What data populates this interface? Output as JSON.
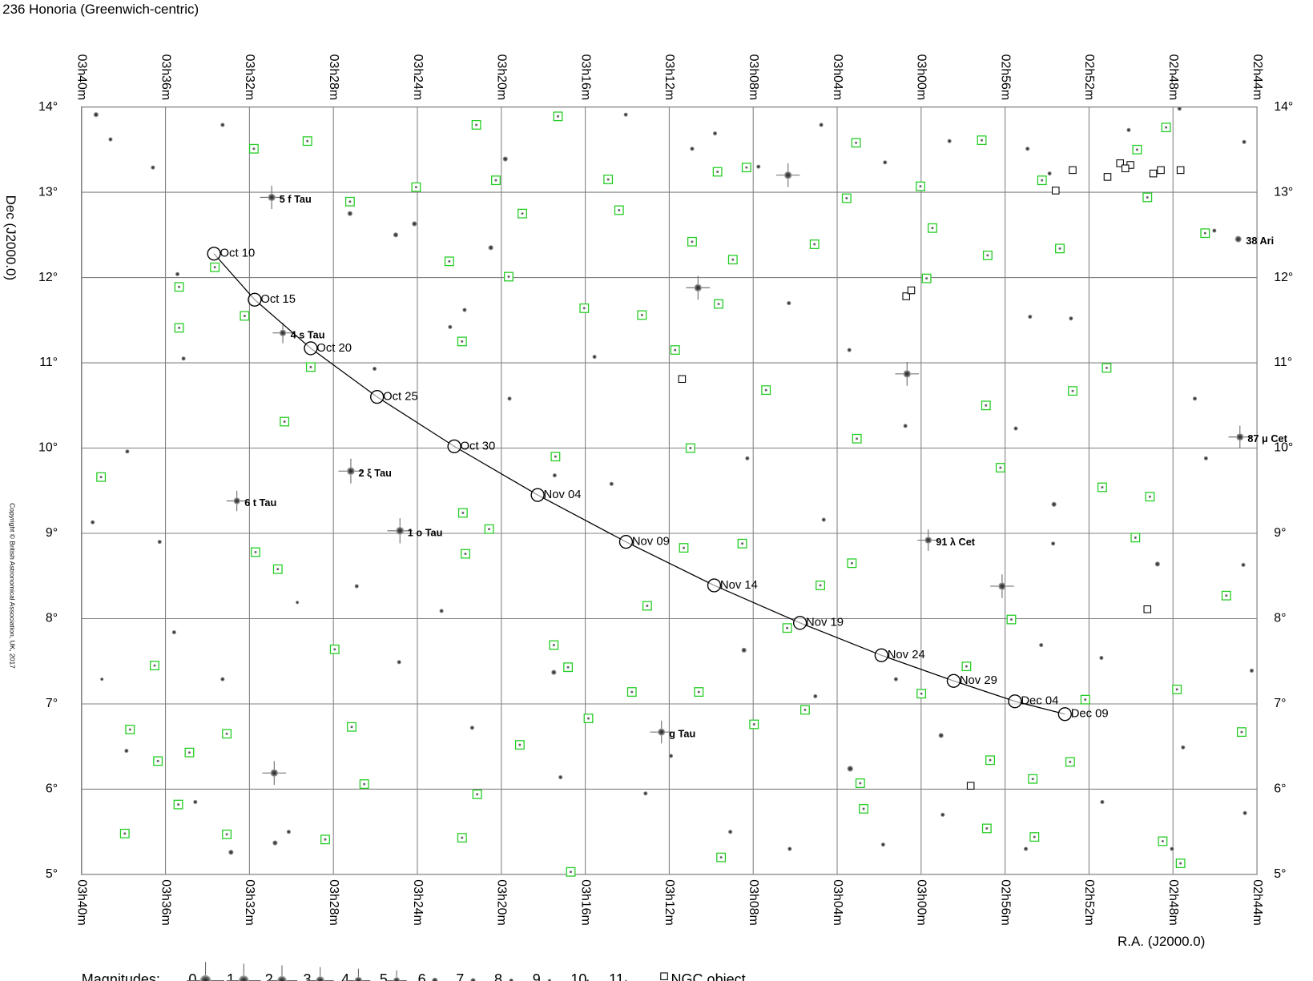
{
  "chart_data": {
    "type": "scatter",
    "title": "236 Honoria (Greenwich-centric)",
    "x_label": "R.A. (J2000.0)",
    "y_label": "Dec (J2000.0)",
    "copyright": "Copyright © British Astronomical Association, UK, 2017",
    "xlim": [
      220,
      164
    ],
    "ylim": [
      5,
      14
    ],
    "grid": true,
    "xticks": [
      {
        "value": 220,
        "label": "03h40m"
      },
      {
        "value": 216,
        "label": "03h36m"
      },
      {
        "value": 212,
        "label": "03h32m"
      },
      {
        "value": 208,
        "label": "03h28m"
      },
      {
        "value": 204,
        "label": "03h24m"
      },
      {
        "value": 200,
        "label": "03h20m"
      },
      {
        "value": 196,
        "label": "03h16m"
      },
      {
        "value": 192,
        "label": "03h12m"
      },
      {
        "value": 188,
        "label": "03h08m"
      },
      {
        "value": 184,
        "label": "03h04m"
      },
      {
        "value": 180,
        "label": "03h00m"
      },
      {
        "value": 176,
        "label": "02h56m"
      },
      {
        "value": 172,
        "label": "02h52m"
      },
      {
        "value": 168,
        "label": "02h48m"
      },
      {
        "value": 164,
        "label": "02h44m"
      }
    ],
    "yticks": [
      {
        "value": 14,
        "label": "14°"
      },
      {
        "value": 13,
        "label": "13°"
      },
      {
        "value": 12,
        "label": "12°"
      },
      {
        "value": 11,
        "label": "11°"
      },
      {
        "value": 10,
        "label": "10°"
      },
      {
        "value": 9,
        "label": "9°"
      },
      {
        "value": 8,
        "label": "8°"
      },
      {
        "value": 7,
        "label": "7°"
      },
      {
        "value": 6,
        "label": "6°"
      },
      {
        "value": 5,
        "label": "5°"
      }
    ],
    "track": {
      "color": "#000000",
      "labels": [
        "Oct 10",
        "Oct 15",
        "Oct 20",
        "Oct 25",
        "Oct 30",
        "Nov 04",
        "Nov 09",
        "Nov 14",
        "Nov 19",
        "Nov 24",
        "Nov 29",
        "Dec 04",
        "Dec 09"
      ],
      "x": [
        213.69,
        211.75,
        209.08,
        205.92,
        202.24,
        198.27,
        194.06,
        189.86,
        185.77,
        181.89,
        178.45,
        175.53,
        173.15
      ],
      "y": [
        12.28,
        11.74,
        11.17,
        10.6,
        10.02,
        9.45,
        8.9,
        8.39,
        7.95,
        7.57,
        7.27,
        7.03,
        6.88
      ]
    },
    "named_stars": {
      "labels": [
        "5 f Tau",
        "4 s Tau",
        "2 ξ Tau",
        "6 t Tau",
        "1 o Tau",
        "g Tau",
        "91 λ Cet",
        "87 μ Cet",
        "38 Ari"
      ],
      "x": [
        210.94,
        210.41,
        207.17,
        212.6,
        204.83,
        192.37,
        179.66,
        164.81,
        164.89
      ],
      "y": [
        12.94,
        11.35,
        9.73,
        9.38,
        9.03,
        6.67,
        8.92,
        10.13,
        12.45
      ],
      "mag": [
        4.1,
        5,
        3.7,
        5,
        3.6,
        4.3,
        4.7,
        4.3,
        5.2
      ]
    },
    "stars": {
      "x": [
        219.31,
        213.28,
        199.81,
        186.34,
        190.63,
        180.67,
        176.14,
        210.82,
        210.78,
        212.88,
        173.67,
        205.03,
        200.5,
        183.38,
        179.05,
        168.74,
        164.61,
        167.69,
        166.03,
        218.62,
        216.6,
        215.43,
        215.14,
        217.82,
        219.47,
        216.28,
        213.28,
        217.86,
        214.58,
        210.13,
        207.21,
        204.14,
        206.04,
        202.44,
        201.75,
        199.61,
        197.46,
        195.56,
        194.07,
        190.91,
        189.82,
        187.75,
        184.76,
        181.72,
        178.65,
        174.93,
        173.88,
        170.11,
        174.81,
        172.86,
        183.42,
        186.3,
        188.28,
        184.64,
        180.75,
        175.49,
        173.71,
        166.43,
        164.65,
        166.96,
        188.44,
        197.5,
        201.39,
        197.18,
        193.13,
        189.09,
        186.26,
        181.81,
        178.97,
        175.01,
        171.37,
        168.05,
        164.57,
        164.25,
        167.52,
        171.41,
        174.28,
        181.2,
        185.04,
        191.92,
        194.75,
        206.89,
        204.87,
        202.85,
        215.59,
        219.03,
        209.72
      ],
      "y": [
        13.91,
        13.79,
        13.39,
        13.2,
        11.88,
        10.87,
        8.38,
        6.19,
        5.37,
        5.26,
        9.34,
        12.5,
        12.35,
        6.24,
        6.63,
        8.64,
        13.59,
        13.98,
        12.55,
        13.62,
        13.29,
        12.04,
        11.05,
        9.96,
        9.13,
        8.9,
        7.29,
        6.45,
        5.85,
        5.5,
        12.75,
        12.63,
        10.93,
        11.42,
        11.62,
        10.58,
        9.68,
        11.07,
        13.91,
        13.51,
        13.69,
        13.3,
        13.79,
        13.35,
        13.6,
        13.51,
        13.22,
        13.73,
        11.54,
        11.52,
        11.15,
        11.7,
        9.88,
        9.16,
        10.26,
        10.23,
        8.88,
        9.88,
        8.63,
        10.58,
        7.63,
        7.37,
        6.72,
        6.14,
        5.95,
        5.5,
        5.3,
        5.35,
        5.7,
        5.3,
        5.85,
        5.3,
        5.72,
        7.39,
        6.49,
        7.54,
        7.69,
        7.29,
        7.09,
        6.39,
        9.58,
        8.38,
        7.49,
        8.09,
        7.84,
        7.29,
        8.19
      ],
      "mag": [
        7,
        8,
        7,
        4,
        4,
        4,
        4,
        4,
        7,
        7,
        7,
        7,
        7,
        6,
        7,
        7,
        8,
        8,
        8,
        8,
        8,
        8,
        8,
        8,
        8,
        8,
        8,
        8,
        8,
        8,
        7,
        7,
        8,
        8,
        8,
        8,
        8,
        8,
        8,
        8,
        8,
        8,
        8,
        8,
        8,
        8,
        8,
        8,
        8,
        8,
        8,
        8,
        8,
        8,
        8,
        8,
        8,
        8,
        8,
        8,
        7,
        7,
        8,
        8,
        8,
        8,
        8,
        8,
        8,
        8,
        8,
        8,
        8,
        8,
        8,
        8,
        8,
        8,
        8,
        8,
        8,
        8,
        8,
        8,
        8,
        9,
        9
      ]
    },
    "galaxies": {
      "color": "#22cc22",
      "x": [
        211.79,
        209.24,
        201.19,
        197.3,
        204.06,
        207.21,
        200.26,
        199.0,
        202.48,
        199.65,
        194.91,
        194.39,
        190.91,
        189.7,
        188.97,
        188.32,
        183.1,
        183.55,
        185.08,
        180.03,
        179.46,
        179.74,
        176.83,
        177.11,
        174.24,
        173.39,
        169.71,
        169.22,
        168.33,
        166.47,
        215.35,
        215.35,
        213.65,
        212.23,
        209.08,
        201.87,
        196.05,
        193.3,
        191.72,
        189.65,
        187.39,
        176.91,
        172.78,
        171.16,
        183.06,
        190.99,
        197.42,
        210.33,
        219.07,
        176.22,
        171.37,
        169.1,
        201.83,
        200.58,
        201.71,
        211.71,
        210.65,
        191.31,
        188.52,
        183.3,
        184.8,
        193.05,
        186.38,
        175.7,
        169.79,
        165.46,
        177.84,
        179.99,
        172.18,
        167.81,
        164.73,
        172.9,
        176.71,
        182.9,
        185.53,
        187.96,
        190.59,
        193.78,
        196.82,
        197.5,
        199.12,
        195.85,
        207.94,
        207.13,
        206.53,
        213.08,
        214.86,
        216.36,
        216.52,
        217.69,
        217.94,
        213.08,
        208.39,
        201.87,
        201.15,
        196.69,
        189.53,
        182.74,
        176.87,
        174.6,
        168.49,
        167.64,
        174.68,
        215.39
      ],
      "y": [
        13.51,
        13.6,
        13.79,
        13.89,
        13.06,
        12.89,
        13.14,
        12.75,
        12.19,
        12.01,
        13.15,
        12.79,
        12.42,
        13.24,
        12.21,
        13.29,
        13.58,
        12.93,
        12.39,
        13.07,
        12.58,
        11.99,
        12.26,
        13.61,
        13.14,
        12.34,
        13.5,
        12.94,
        13.76,
        12.52,
        11.89,
        11.41,
        12.12,
        11.55,
        10.95,
        11.25,
        11.64,
        11.56,
        11.15,
        11.69,
        10.68,
        10.5,
        10.67,
        10.94,
        10.11,
        10.0,
        9.9,
        10.31,
        9.66,
        9.77,
        9.54,
        9.43,
        9.24,
        9.05,
        8.76,
        8.78,
        8.58,
        8.83,
        8.88,
        8.65,
        8.39,
        8.15,
        7.89,
        7.99,
        8.95,
        8.27,
        7.44,
        7.12,
        7.05,
        7.17,
        6.67,
        6.32,
        6.34,
        6.07,
        6.93,
        6.76,
        7.14,
        7.14,
        7.43,
        7.69,
        6.52,
        6.83,
        7.64,
        6.73,
        6.06,
        6.65,
        6.43,
        6.33,
        7.45,
        6.7,
        5.48,
        5.47,
        5.41,
        5.43,
        5.94,
        5.03,
        5.2,
        5.77,
        5.54,
        5.44,
        5.39,
        5.13,
        6.12,
        5.82
      ]
    },
    "ngc_objects": {
      "name": "NGC object",
      "color": "#000000",
      "x": [
        172.78,
        173.59,
        171.12,
        170.52,
        170.03,
        170.27,
        168.94,
        168.58,
        167.64,
        180.71,
        180.47,
        191.39,
        169.22,
        177.64
      ],
      "y": [
        13.26,
        13.02,
        13.18,
        13.34,
        13.32,
        13.28,
        13.22,
        13.26,
        13.26,
        11.78,
        11.85,
        10.81,
        8.11,
        6.04
      ]
    },
    "legend": {
      "title": "Magnitudes:",
      "magnitudes": [
        0,
        1,
        2,
        3,
        4,
        5,
        6,
        7,
        8,
        9,
        10,
        11
      ]
    }
  }
}
